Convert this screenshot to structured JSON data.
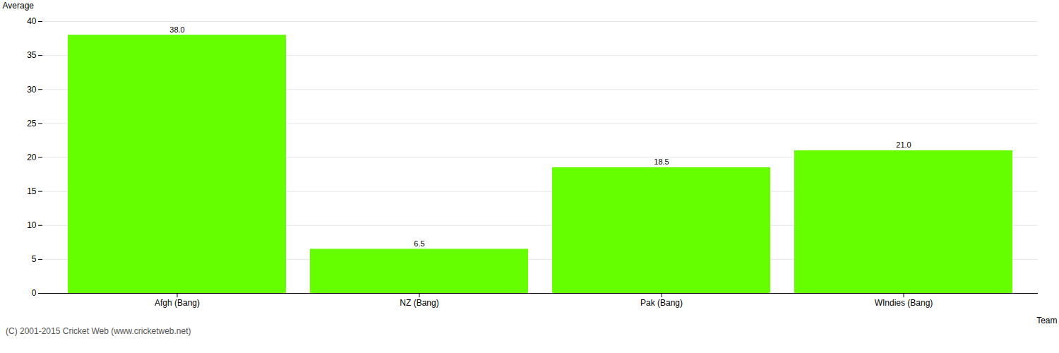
{
  "chart_data": {
    "type": "bar",
    "categories": [
      "Afgh (Bang)",
      "NZ (Bang)",
      "Pak (Bang)",
      "WIndies (Bang)"
    ],
    "values": [
      38.0,
      6.5,
      18.5,
      21.0
    ],
    "value_labels": [
      "38.0",
      "6.5",
      "18.5",
      "21.0"
    ],
    "data_labels": true,
    "color": "#66ff00",
    "xlabel": "Team",
    "ylabel": "Average",
    "ylim": [
      0,
      40
    ],
    "yticks": [
      0,
      5,
      10,
      15,
      20,
      25,
      30,
      35,
      40
    ],
    "grid": true,
    "annotations": [
      "(C) 2001-2015 Cricket Web (www.cricketweb.net)"
    ]
  }
}
